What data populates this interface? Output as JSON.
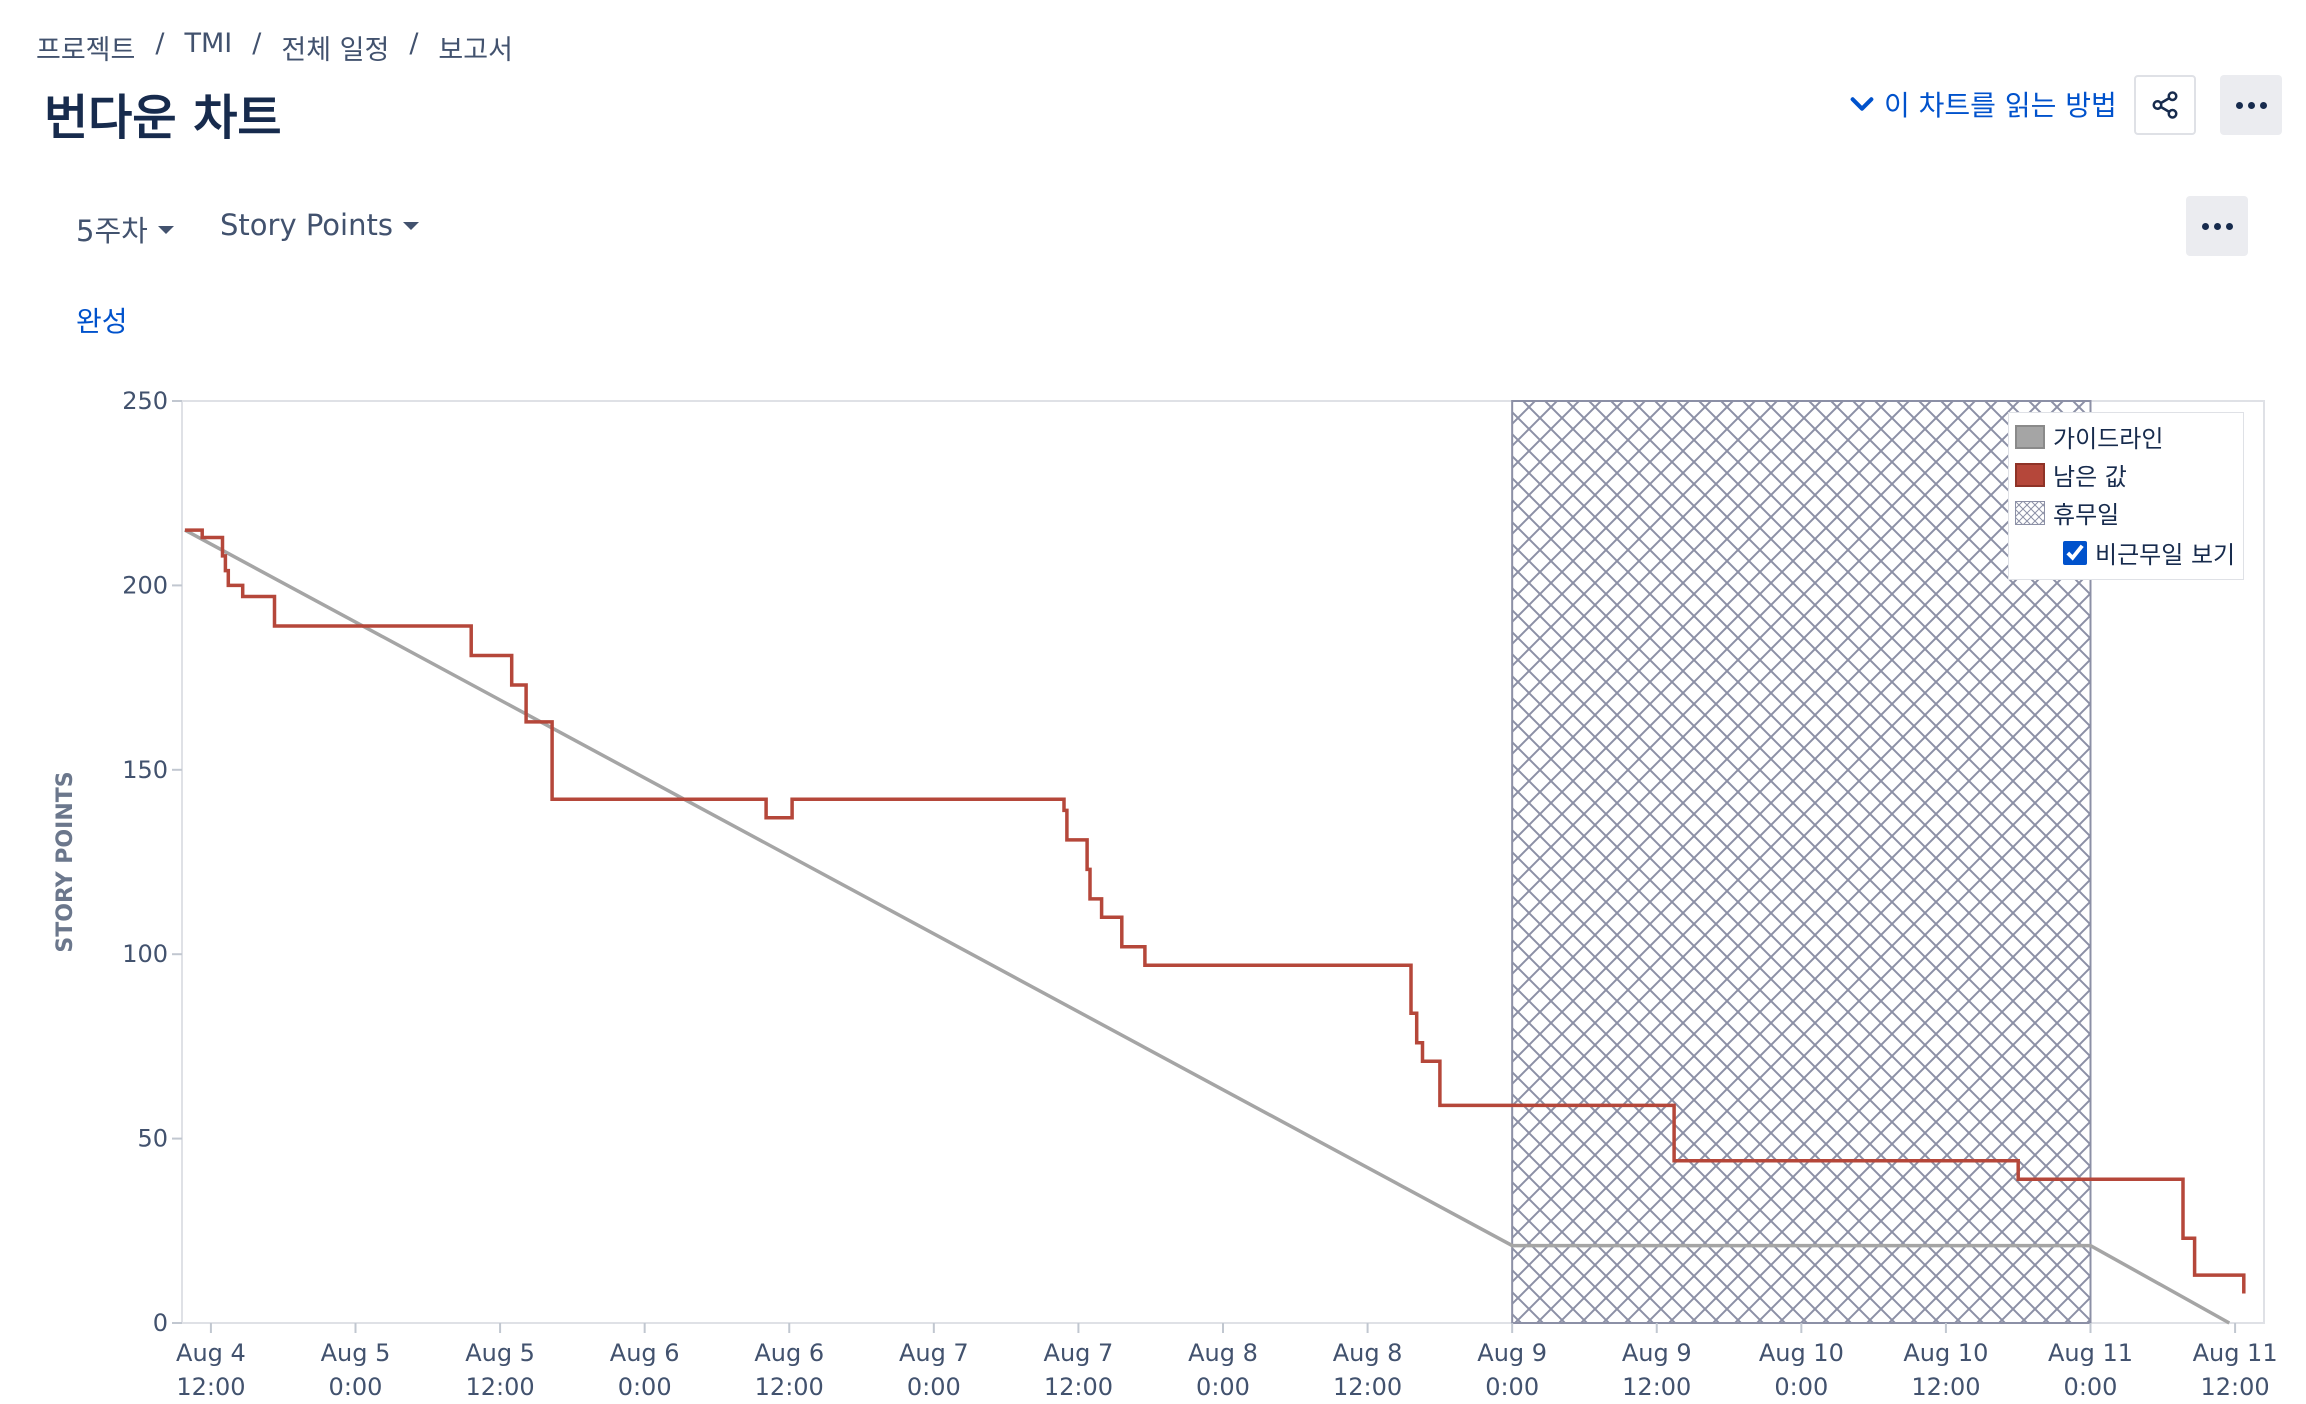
{
  "breadcrumb": [
    "프로젝트",
    "TMI",
    "전체 일정",
    "보고서"
  ],
  "title": "번다운 차트",
  "help_link": "이 차트를 읽는 방법",
  "filters": {
    "week": "5주차",
    "metric": "Story Points"
  },
  "status_link": "완성",
  "icons": {
    "help": "chevron-down-icon",
    "share": "share-icon",
    "more": "more-icon"
  },
  "colors": {
    "guideline": "#a5a5a5",
    "remaining": "#b5473a",
    "holiday": "#8c90a6",
    "link": "#0052cc"
  },
  "legend": {
    "guideline": "가이드라인",
    "remaining": "남은 값",
    "holiday": "휴무일",
    "show_nonworking": "비근무일 보기",
    "show_nonworking_checked": true
  },
  "chart_data": {
    "type": "line",
    "ylabel": "STORY POINTS",
    "xlabel": "",
    "ylim": [
      0,
      250
    ],
    "yticks": [
      0,
      50,
      100,
      150,
      200,
      250
    ],
    "xlim": [
      -0.1,
      7.1
    ],
    "xticks": [
      {
        "value": 0,
        "line1": "Aug 4",
        "line2": "12:00"
      },
      {
        "value": 0.5,
        "line1": "Aug 5",
        "line2": "0:00"
      },
      {
        "value": 1,
        "line1": "Aug 5",
        "line2": "12:00"
      },
      {
        "value": 1.5,
        "line1": "Aug 6",
        "line2": "0:00"
      },
      {
        "value": 2,
        "line1": "Aug 6",
        "line2": "12:00"
      },
      {
        "value": 2.5,
        "line1": "Aug 7",
        "line2": "0:00"
      },
      {
        "value": 3,
        "line1": "Aug 7",
        "line2": "12:00"
      },
      {
        "value": 3.5,
        "line1": "Aug 8",
        "line2": "0:00"
      },
      {
        "value": 4,
        "line1": "Aug 8",
        "line2": "12:00"
      },
      {
        "value": 4.5,
        "line1": "Aug 9",
        "line2": "0:00"
      },
      {
        "value": 5,
        "line1": "Aug 9",
        "line2": "12:00"
      },
      {
        "value": 5.5,
        "line1": "Aug 10",
        "line2": "0:00"
      },
      {
        "value": 6,
        "line1": "Aug 10",
        "line2": "12:00"
      },
      {
        "value": 6.5,
        "line1": "Aug 11",
        "line2": "0:00"
      },
      {
        "value": 7,
        "line1": "Aug 11",
        "line2": "12:00"
      }
    ],
    "holiday_band": [
      4.5,
      6.5
    ],
    "grid": false,
    "legend_position": "top-right",
    "series": [
      {
        "name": "가이드라인",
        "points": [
          [
            -0.09,
            215
          ],
          [
            4.5,
            21
          ],
          [
            6.5,
            21
          ],
          [
            6.98,
            0
          ]
        ]
      },
      {
        "name": "남은 값",
        "points": [
          [
            -0.09,
            215
          ],
          [
            -0.03,
            215
          ],
          [
            -0.03,
            213
          ],
          [
            0.04,
            213
          ],
          [
            0.04,
            208
          ],
          [
            0.05,
            208
          ],
          [
            0.05,
            204
          ],
          [
            0.06,
            204
          ],
          [
            0.06,
            200
          ],
          [
            0.11,
            200
          ],
          [
            0.11,
            197
          ],
          [
            0.22,
            197
          ],
          [
            0.22,
            189
          ],
          [
            0.9,
            189
          ],
          [
            0.9,
            181
          ],
          [
            1.04,
            181
          ],
          [
            1.04,
            173
          ],
          [
            1.09,
            173
          ],
          [
            1.09,
            163
          ],
          [
            1.18,
            163
          ],
          [
            1.18,
            142
          ],
          [
            1.92,
            142
          ],
          [
            1.92,
            137
          ],
          [
            2.01,
            137
          ],
          [
            2.01,
            142
          ],
          [
            2.95,
            142
          ],
          [
            2.95,
            139
          ],
          [
            2.96,
            139
          ],
          [
            2.96,
            131
          ],
          [
            3.03,
            131
          ],
          [
            3.03,
            123
          ],
          [
            3.04,
            123
          ],
          [
            3.04,
            115
          ],
          [
            3.08,
            115
          ],
          [
            3.08,
            110
          ],
          [
            3.15,
            110
          ],
          [
            3.15,
            102
          ],
          [
            3.23,
            102
          ],
          [
            3.23,
            97
          ],
          [
            4.15,
            97
          ],
          [
            4.15,
            84
          ],
          [
            4.17,
            84
          ],
          [
            4.17,
            76
          ],
          [
            4.19,
            76
          ],
          [
            4.19,
            71
          ],
          [
            4.25,
            71
          ],
          [
            4.25,
            59
          ],
          [
            5.06,
            59
          ],
          [
            5.06,
            44
          ],
          [
            6.25,
            44
          ],
          [
            6.25,
            39
          ],
          [
            6.82,
            39
          ],
          [
            6.82,
            23
          ],
          [
            6.86,
            23
          ],
          [
            6.86,
            13
          ],
          [
            7.03,
            13
          ],
          [
            7.03,
            8
          ]
        ]
      }
    ]
  }
}
